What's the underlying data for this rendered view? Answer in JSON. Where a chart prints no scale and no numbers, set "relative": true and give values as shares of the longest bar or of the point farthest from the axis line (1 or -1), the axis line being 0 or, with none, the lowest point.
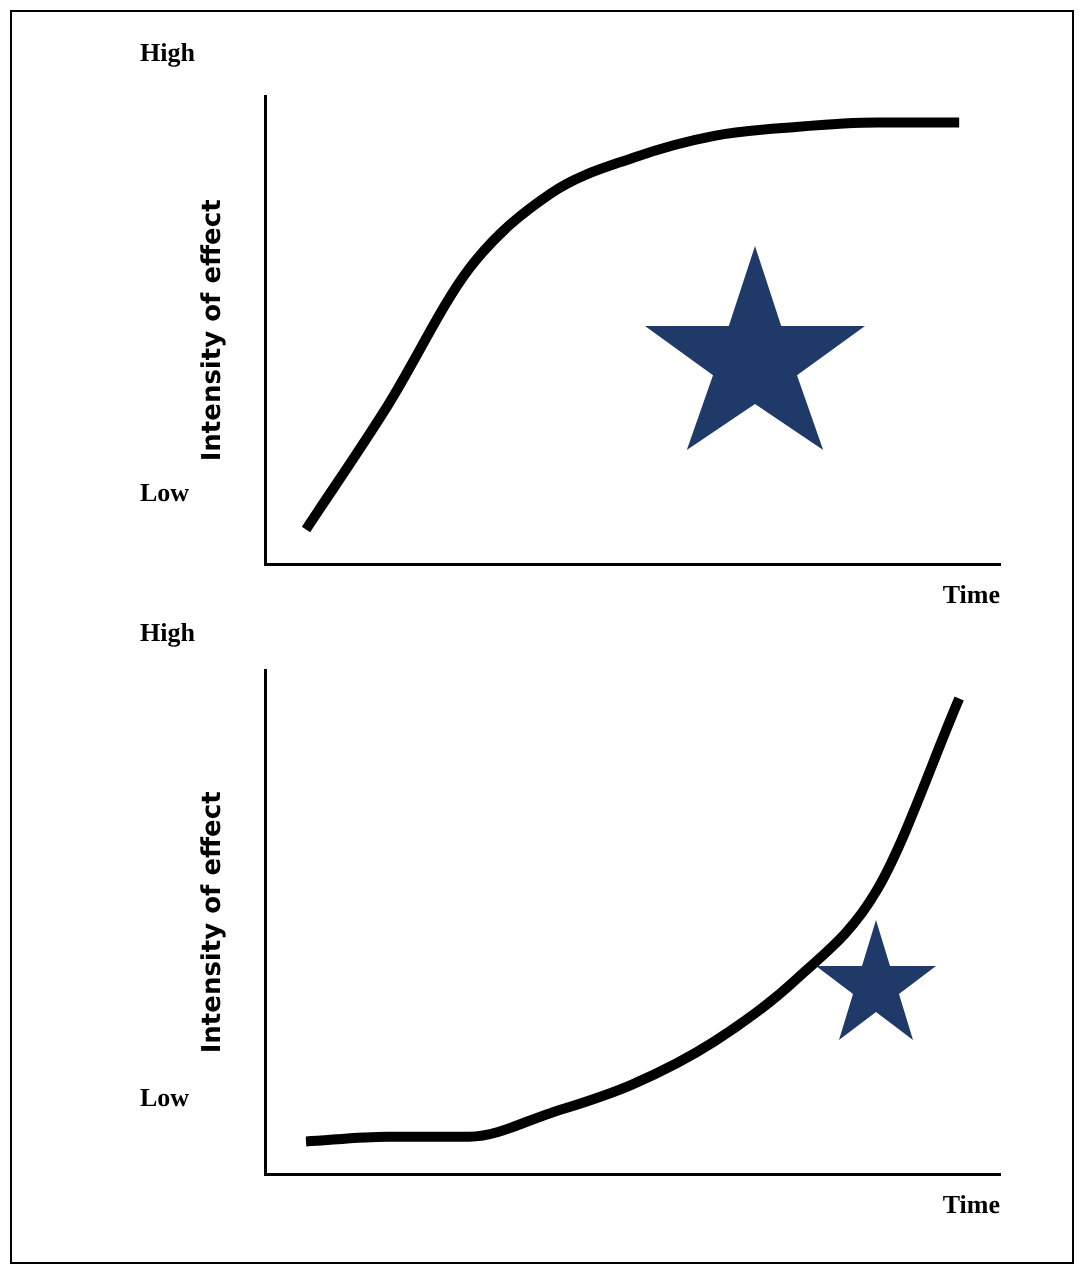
{
  "chart_data": [
    {
      "type": "line",
      "relative": true,
      "xlabel": "Time",
      "ylabel": "Intensity of effect",
      "annotations": [
        "High",
        "Low"
      ],
      "categories": [
        null,
        null,
        null,
        null,
        null,
        null,
        null,
        null,
        null
      ],
      "series": [
        {
          "color": "#000000",
          "values": [
            0.08,
            0.36,
            0.67,
            0.84,
            0.92,
            0.97,
            0.99,
            1,
            1
          ]
        }
      ],
      "grid": false,
      "legend": false,
      "marker": "none",
      "line_style": "solid"
    },
    {
      "type": "line",
      "relative": true,
      "xlabel": "Time",
      "ylabel": "Intensity of effect",
      "annotations": [
        "High",
        "Low"
      ],
      "categories": [
        null,
        null,
        null,
        null,
        null,
        null,
        null,
        null,
        null
      ],
      "series": [
        {
          "color": "#000000",
          "values": [
            0.07,
            0.08,
            0.08,
            0.13,
            0.19,
            0.28,
            0.41,
            0.6,
            1
          ]
        }
      ],
      "grid": false,
      "legend": false,
      "marker": "none",
      "line_style": "solid"
    }
  ]
}
